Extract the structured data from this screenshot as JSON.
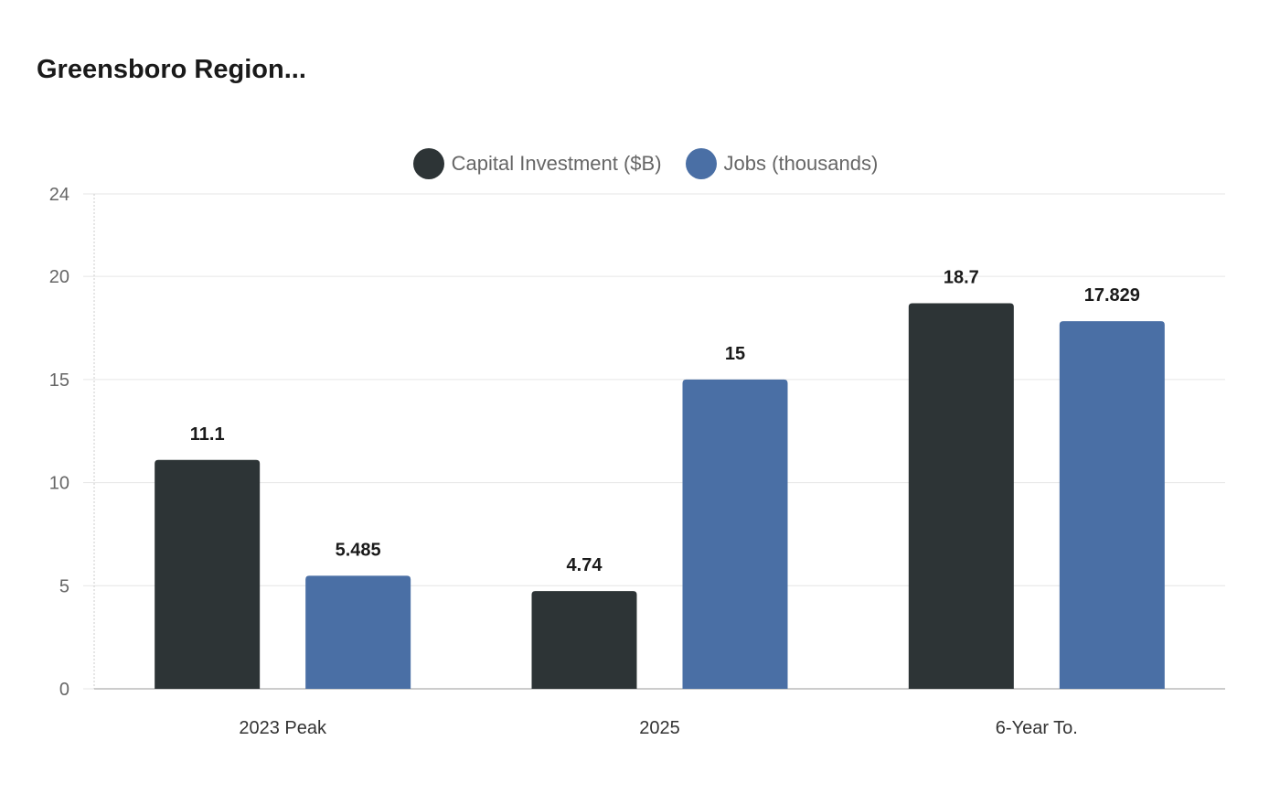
{
  "chart_data": {
    "type": "bar",
    "title": "Greensboro Region...",
    "categories": [
      "2023 Peak",
      "2025",
      "6-Year To."
    ],
    "series": [
      {
        "name": "Capital Investment ($B)",
        "color": "#2d3436",
        "values": [
          11.1,
          4.74,
          18.7
        ],
        "labels": [
          "11.1",
          "4.74",
          "18.7"
        ]
      },
      {
        "name": "Jobs (thousands)",
        "color": "#4a6fa5",
        "values": [
          5.485,
          15,
          17.829
        ],
        "labels": [
          "5.485",
          "15",
          "17.829"
        ]
      }
    ],
    "yticks": [
      0,
      5,
      10,
      15,
      20,
      24
    ],
    "ylim": [
      0,
      24
    ],
    "xlabel": "",
    "ylabel": "",
    "grid": true,
    "legend_position": "top-center"
  }
}
